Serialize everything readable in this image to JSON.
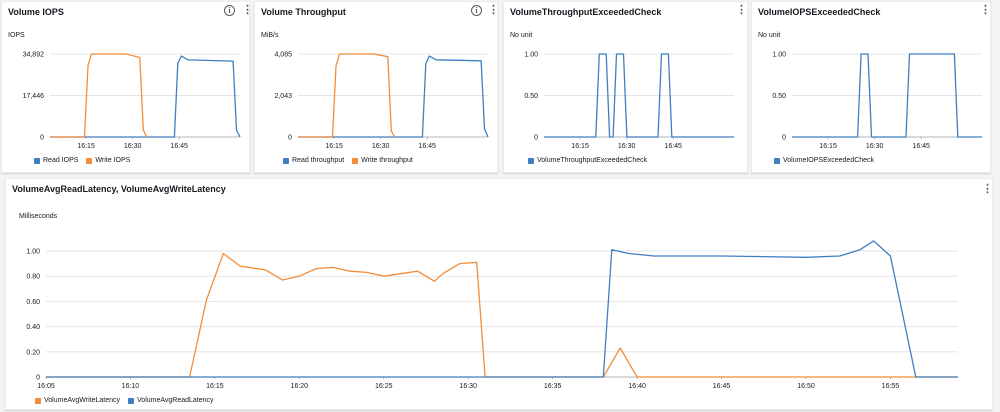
{
  "widgets": [
    {
      "title": "Volume IOPS",
      "has_info": true,
      "unit": "IOPS",
      "legend": [
        {
          "label": "Read IOPS",
          "color": "#3f7ec1"
        },
        {
          "label": "Write IOPS",
          "color": "#f28c38"
        }
      ]
    },
    {
      "title": "Volume Throughput",
      "has_info": true,
      "unit": "MiB/s",
      "legend": [
        {
          "label": "Read throughput",
          "color": "#3f7ec1"
        },
        {
          "label": "Write throughput",
          "color": "#f28c38"
        }
      ]
    },
    {
      "title": "VolumeThroughputExceededCheck",
      "has_info": false,
      "unit": "No unit",
      "legend": [
        {
          "label": "VolumeThroughputExceededCheck",
          "color": "#3f7ec1"
        }
      ]
    },
    {
      "title": "VolumeIOPSExceededCheck",
      "has_info": false,
      "unit": "No unit",
      "legend": [
        {
          "label": "VolumeIOPSExceededCheck",
          "color": "#3f7ec1"
        }
      ]
    },
    {
      "title": "VolumeAvgReadLatency, VolumeAvgWriteLatency",
      "has_info": false,
      "unit": "Milliseconds",
      "legend": [
        {
          "label": "VolumeAvgWriteLatency",
          "color": "#f28c38"
        },
        {
          "label": "VolumeAvgReadLatency",
          "color": "#3f7ec1"
        }
      ]
    }
  ],
  "info_glyph": "i",
  "menu_glyph": "⋮",
  "chart_data": [
    {
      "type": "line",
      "title": "Volume IOPS",
      "ylabel": "IOPS",
      "x_ticks": [
        "16:15",
        "16:30",
        "16:45"
      ],
      "y_ticks": [
        "0",
        "17,446",
        "34,892"
      ],
      "ylim": [
        0,
        34892
      ],
      "xlim": [
        0,
        55
      ],
      "series": [
        {
          "name": "Read IOPS",
          "color": "#3f7ec1",
          "x": [
            0,
            36,
            37,
            38,
            40,
            53,
            54,
            55
          ],
          "y": [
            0,
            0,
            31000,
            34000,
            32400,
            31900,
            3000,
            0
          ]
        },
        {
          "name": "Write IOPS",
          "color": "#f28c38",
          "x": [
            0,
            10,
            11,
            12,
            22,
            26,
            27,
            28
          ],
          "y": [
            0,
            0,
            30000,
            34892,
            34892,
            33400,
            3000,
            0
          ]
        }
      ]
    },
    {
      "type": "line",
      "title": "Volume Throughput",
      "ylabel": "MiB/s",
      "x_ticks": [
        "16:15",
        "16:30",
        "16:45"
      ],
      "y_ticks": [
        "0",
        "2,043",
        "4,085"
      ],
      "ylim": [
        0,
        4085
      ],
      "xlim": [
        0,
        55
      ],
      "series": [
        {
          "name": "Read throughput",
          "color": "#3f7ec1",
          "x": [
            0,
            36,
            37,
            38,
            40,
            53,
            54,
            55
          ],
          "y": [
            0,
            0,
            3600,
            3980,
            3800,
            3750,
            400,
            0
          ]
        },
        {
          "name": "Write throughput",
          "color": "#f28c38",
          "x": [
            0,
            10,
            11,
            12,
            22,
            26,
            27,
            28
          ],
          "y": [
            0,
            0,
            3500,
            4085,
            4085,
            3950,
            300,
            0
          ]
        }
      ]
    },
    {
      "type": "line",
      "title": "VolumeThroughputExceededCheck",
      "ylabel": "No unit",
      "x_ticks": [
        "16:15",
        "16:30",
        "16:45"
      ],
      "y_ticks": [
        "0",
        "0.50",
        "1.00"
      ],
      "ylim": [
        0,
        1
      ],
      "xlim": [
        0,
        55
      ],
      "series": [
        {
          "name": "VolumeThroughputExceededCheck",
          "color": "#3f7ec1",
          "x": [
            0,
            15,
            16,
            18,
            19,
            20,
            21,
            23,
            24,
            33,
            34,
            36,
            37,
            55
          ],
          "y": [
            0,
            0,
            1,
            1,
            0,
            0,
            1,
            1,
            0,
            0,
            1,
            1,
            0,
            0
          ]
        }
      ]
    },
    {
      "type": "line",
      "title": "VolumeIOPSExceededCheck",
      "ylabel": "No unit",
      "x_ticks": [
        "16:15",
        "16:30",
        "16:45"
      ],
      "y_ticks": [
        "0",
        "0.50",
        "1.00"
      ],
      "ylim": [
        0,
        1
      ],
      "xlim": [
        0,
        55
      ],
      "series": [
        {
          "name": "VolumeIOPSExceededCheck",
          "color": "#3f7ec1",
          "x": [
            0,
            19,
            20,
            22,
            23,
            33,
            34,
            47,
            48,
            55
          ],
          "y": [
            0,
            0,
            1,
            1,
            0,
            0,
            1,
            1,
            0,
            0
          ]
        }
      ]
    },
    {
      "type": "line",
      "title": "VolumeAvgReadLatency, VolumeAvgWriteLatency",
      "ylabel": "Milliseconds",
      "x_ticks": [
        "16:05",
        "16:10",
        "16:15",
        "16:20",
        "16:25",
        "16:30",
        "16:35",
        "16:40",
        "16:45",
        "16:50",
        "16:55"
      ],
      "y_ticks": [
        "0",
        "0.20",
        "0.40",
        "0.60",
        "0.80",
        "1.00"
      ],
      "ylim": [
        0,
        1.0
      ],
      "xlim": [
        0,
        54
      ],
      "series": [
        {
          "name": "VolumeAvgWriteLatency",
          "color": "#f28c38",
          "x": [
            0,
            8.5,
            9.5,
            10.5,
            11.5,
            13,
            14,
            15,
            16,
            17,
            18,
            19,
            20,
            21,
            22,
            23,
            23.5,
            24.5,
            25.5,
            26,
            33,
            34,
            35,
            54
          ],
          "y": [
            0,
            0,
            0.61,
            0.98,
            0.88,
            0.85,
            0.77,
            0.8,
            0.86,
            0.87,
            0.84,
            0.83,
            0.8,
            0.82,
            0.84,
            0.76,
            0.82,
            0.9,
            0.91,
            0,
            0,
            0.23,
            0,
            0
          ]
        },
        {
          "name": "VolumeAvgReadLatency",
          "color": "#3f7ec1",
          "x": [
            0,
            33,
            33.5,
            34.5,
            36,
            40,
            45,
            47,
            48.2,
            49,
            50,
            51.5,
            54
          ],
          "y": [
            0,
            0,
            1.01,
            0.98,
            0.96,
            0.96,
            0.95,
            0.96,
            1.01,
            1.08,
            0.96,
            0,
            0
          ]
        }
      ]
    }
  ]
}
